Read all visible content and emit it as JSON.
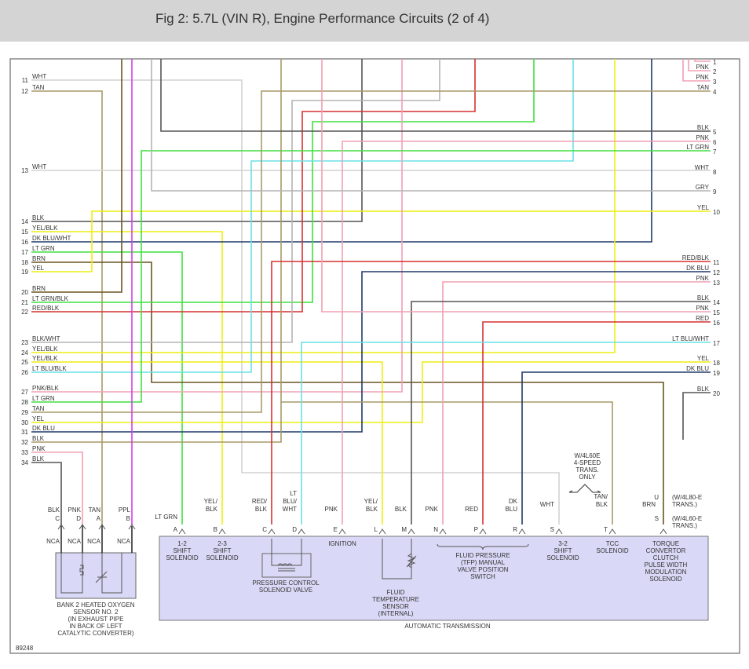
{
  "header": {
    "title": "Fig 2: 5.7L (VIN R), Engine Performance Circuits (2 of 4)"
  },
  "wire_colors": {
    "WHT": "#d2d2d2",
    "TAN": "#a89968",
    "BLK": "#555555",
    "YEL": "#eeee10",
    "DKBLU": "#1f3a6a",
    "LTGRN": "#3fe03f",
    "BRN": "#6b5520",
    "RED": "#d63030",
    "LTBLU": "#6ae0e6",
    "PNK": "#f0a0b4",
    "GRY": "#b4b4b4",
    "PPL": "#d040e8",
    "BOX": "#d9d9f7"
  },
  "left_pins": [
    {
      "pin": "11",
      "label": "WHT"
    },
    {
      "pin": "12",
      "label": "TAN"
    },
    {
      "pin": "13",
      "label": "WHT"
    },
    {
      "pin": "14",
      "label": "BLK"
    },
    {
      "pin": "15",
      "label": "YEL/BLK"
    },
    {
      "pin": "16",
      "label": "DK BLU/WHT"
    },
    {
      "pin": "17",
      "label": "LT GRN"
    },
    {
      "pin": "18",
      "label": "BRN"
    },
    {
      "pin": "19",
      "label": "YEL"
    },
    {
      "pin": "20",
      "label": "BRN"
    },
    {
      "pin": "21",
      "label": "LT GRN/BLK"
    },
    {
      "pin": "22",
      "label": "RED/BLK"
    },
    {
      "pin": "23",
      "label": "BLK/WHT"
    },
    {
      "pin": "24",
      "label": "YEL/BLK"
    },
    {
      "pin": "25",
      "label": "YEL/BLK"
    },
    {
      "pin": "26",
      "label": "LT BLU/BLK"
    },
    {
      "pin": "27",
      "label": "PNK/BLK"
    },
    {
      "pin": "28",
      "label": "LT GRN"
    },
    {
      "pin": "29",
      "label": "TAN"
    },
    {
      "pin": "30",
      "label": "YEL"
    },
    {
      "pin": "31",
      "label": "DK BLU"
    },
    {
      "pin": "32",
      "label": "BLK"
    },
    {
      "pin": "33",
      "label": "PNK"
    },
    {
      "pin": "34",
      "label": "BLK"
    }
  ],
  "right_pins": [
    {
      "pin": "1",
      "label": ""
    },
    {
      "pin": "2",
      "label": "PNK"
    },
    {
      "pin": "3",
      "label": "PNK"
    },
    {
      "pin": "4",
      "label": "TAN"
    },
    {
      "pin": "5",
      "label": "BLK"
    },
    {
      "pin": "6",
      "label": "PNK"
    },
    {
      "pin": "7",
      "label": "LT GRN"
    },
    {
      "pin": "8",
      "label": "WHT"
    },
    {
      "pin": "9",
      "label": "GRY"
    },
    {
      "pin": "10",
      "label": "YEL"
    },
    {
      "pin": "11",
      "label": "RED/BLK"
    },
    {
      "pin": "12",
      "label": "DK BLU"
    },
    {
      "pin": "13",
      "label": "PNK"
    },
    {
      "pin": "14",
      "label": "BLK"
    },
    {
      "pin": "15",
      "label": "PNK"
    },
    {
      "pin": "16",
      "label": "RED"
    },
    {
      "pin": "17",
      "label": "LT BLU/WHT"
    },
    {
      "pin": "18",
      "label": "YEL"
    },
    {
      "pin": "19",
      "label": "DK BLU"
    },
    {
      "pin": "20",
      "label": "BLK"
    }
  ],
  "o2_sensor": {
    "pins": [
      {
        "pin": "C",
        "wire": "BLK",
        "nca": "NCA"
      },
      {
        "pin": "D",
        "wire": "PNK",
        "nca": "NCA"
      },
      {
        "pin": "A",
        "wire": "TAN",
        "nca": "NCA"
      },
      {
        "pin": "B",
        "wire": "PPL",
        "nca": "NCA"
      }
    ],
    "label": [
      "BANK 2 HEATED OXYGEN",
      "SENSOR NO. 2",
      "(IN EXHAUST PIPE",
      "IN BACK OF LEFT",
      "CATALYTIC CONVERTER)"
    ]
  },
  "transmission": {
    "label": "AUTOMATIC TRANSMISSION",
    "pins": [
      {
        "pin": "A",
        "wire": [
          "LT GRN"
        ]
      },
      {
        "pin": "B",
        "wire": [
          "YEL/",
          "BLK"
        ]
      },
      {
        "pin": "C",
        "wire": [
          "RED/",
          "BLK"
        ]
      },
      {
        "pin": "D",
        "wire": [
          "LT",
          "BLU/",
          "WHT"
        ]
      },
      {
        "pin": "E",
        "wire": [
          "PNK"
        ]
      },
      {
        "pin": "L",
        "wire": [
          "YEL/",
          "BLK"
        ]
      },
      {
        "pin": "M",
        "wire": [
          "BLK"
        ]
      },
      {
        "pin": "N",
        "wire": [
          "PNK"
        ]
      },
      {
        "pin": "P",
        "wire": [
          "RED"
        ]
      },
      {
        "pin": "R",
        "wire": [
          "DK",
          "BLU"
        ]
      },
      {
        "pin": "S",
        "wire": [
          "WHT"
        ]
      },
      {
        "pin": "T",
        "wire": [
          "TAN/",
          "BLK"
        ]
      },
      {
        "pin": "U",
        "wire": [
          "BRN"
        ]
      },
      {
        "pin": "S",
        "wire": []
      }
    ],
    "components": [
      [
        "1-2",
        "SHIFT",
        "SOLENOID"
      ],
      [
        "2-3",
        "SHIFT",
        "SOLENOID"
      ],
      [
        "PRESSURE CONTROL",
        "SOLENOID VALVE"
      ],
      [
        "IGNITION"
      ],
      [
        "FLUID",
        "TEMPERATURE",
        "SENSOR",
        "(INTERNAL)"
      ],
      [
        "FLUID PRESSURE",
        "(TFP) MANUAL",
        "VALVE POSITION",
        "SWITCH"
      ],
      [
        "3-2",
        "SHIFT",
        "SOLENOID"
      ],
      [
        "TCC",
        "SOLENOID"
      ],
      [
        "TORQUE",
        "CONVERTOR",
        "CLUTCH",
        "PULSE WIDTH",
        "MODULATION",
        "SOLENOID"
      ]
    ],
    "notes": {
      "four_speed": [
        "W/4L60E",
        "4-SPEED",
        "TRANS.",
        "ONLY"
      ],
      "u_note": [
        "(W/4L80-E",
        "TRANS.)"
      ],
      "s_note": [
        "(W/4L60-E",
        "TRANS.)"
      ]
    }
  },
  "figure_id": "89248"
}
